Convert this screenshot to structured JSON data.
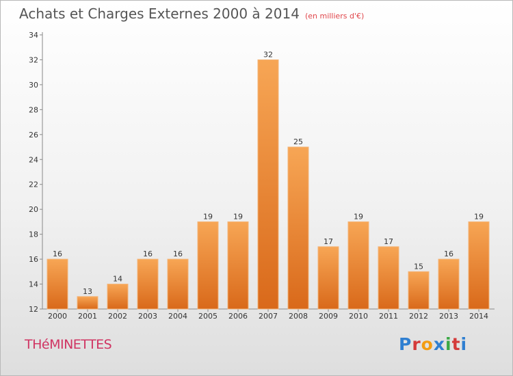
{
  "title": "Achats et Charges Externes 2000 à 2014",
  "unit": "(en milliers d'€)",
  "commune": "THéMINETTES",
  "logo": {
    "letters": [
      "P",
      "r",
      "o",
      "x",
      "i",
      "t",
      "i"
    ],
    "colors": [
      "#2f7fd1",
      "#d43a3a",
      "#f39c12",
      "#2f7fd1",
      "#3aa845",
      "#d43a3a",
      "#2f7fd1"
    ]
  },
  "chart_data": {
    "type": "bar",
    "categories": [
      "2000",
      "2001",
      "2002",
      "2003",
      "2004",
      "2005",
      "2006",
      "2007",
      "2008",
      "2009",
      "2010",
      "2011",
      "2012",
      "2013",
      "2014"
    ],
    "values": [
      16,
      13,
      14,
      16,
      16,
      19,
      19,
      32,
      25,
      17,
      19,
      17,
      15,
      16,
      19
    ],
    "ylim": [
      12,
      34
    ],
    "yticks": [
      12,
      14,
      16,
      18,
      20,
      22,
      24,
      26,
      28,
      30,
      32,
      34
    ],
    "title": "Achats et Charges Externes 2000 à 2014",
    "xlabel": "",
    "ylabel": "",
    "grid": false,
    "bar_color": "#f08a2c"
  }
}
